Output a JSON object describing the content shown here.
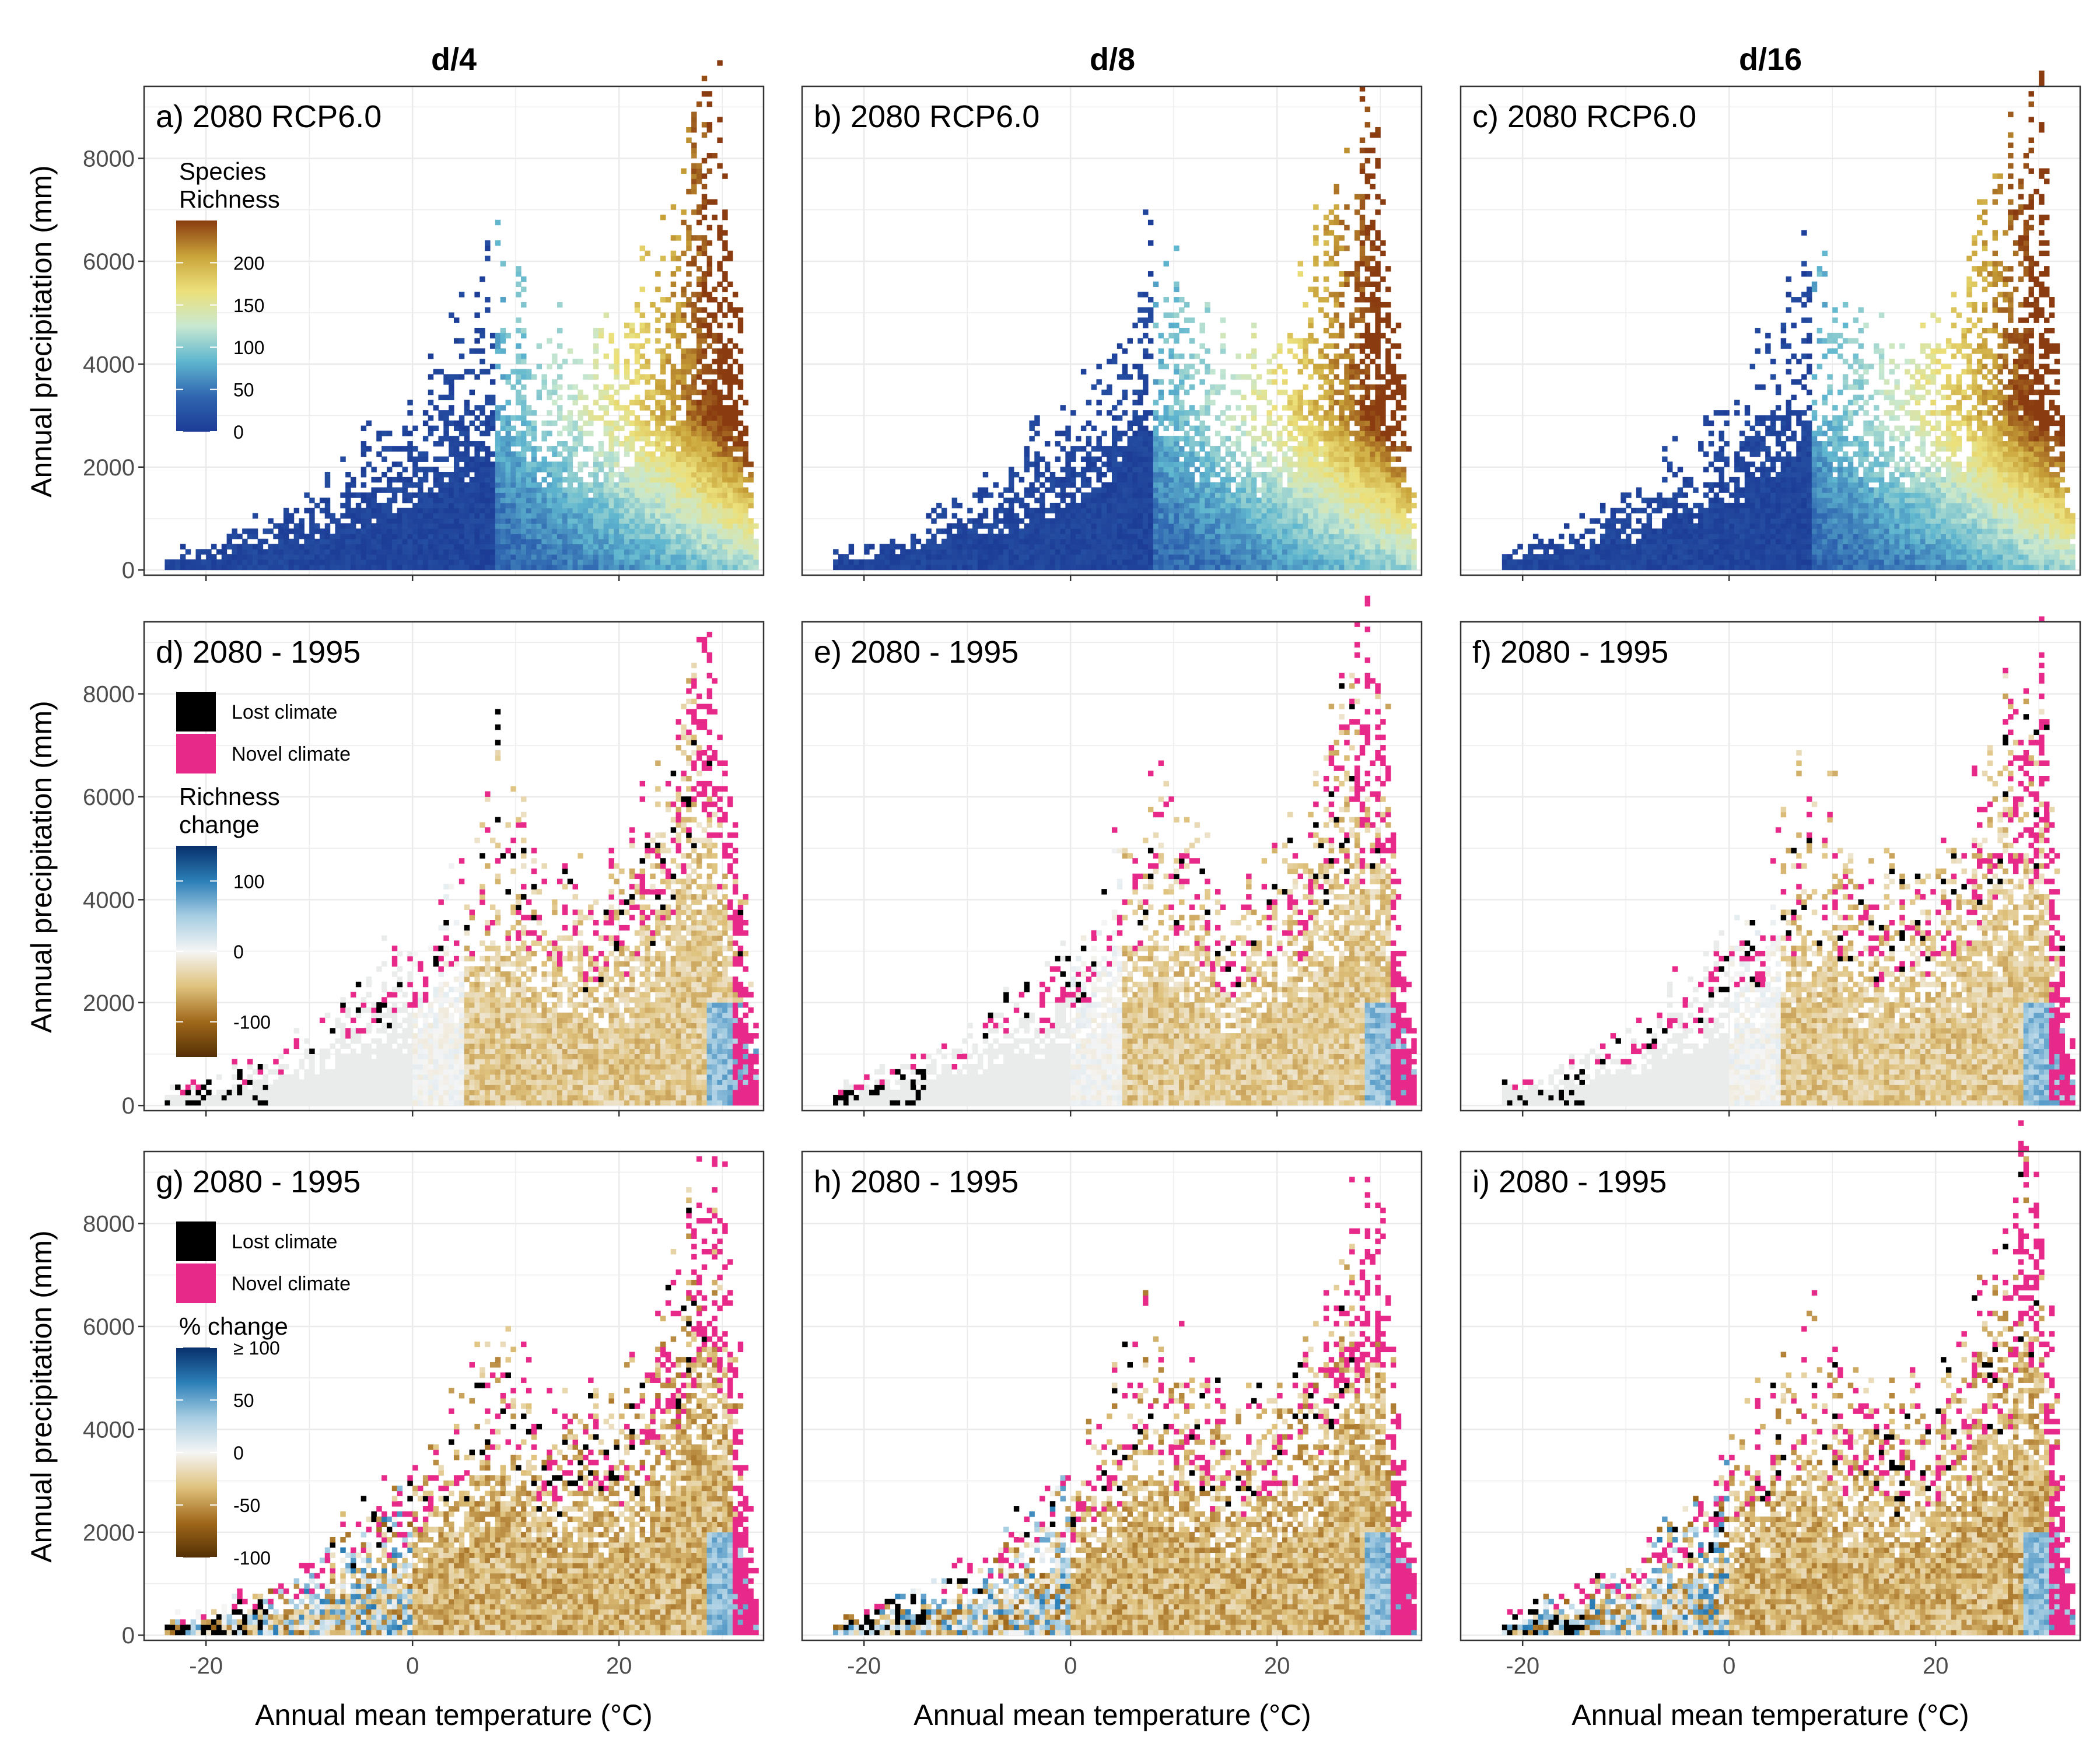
{
  "columns": [
    "d/4",
    "d/8",
    "d/16"
  ],
  "axes": {
    "xlabel": "Annual mean temperature (°C)",
    "ylabel": "Annual precipitation (mm)",
    "xlim": [
      -26,
      34
    ],
    "ylim": [
      -100,
      9400
    ],
    "xticks": [
      -20,
      0,
      20
    ],
    "xtick_labels": [
      "-20",
      "0",
      "20"
    ],
    "yticks": [
      0,
      2000,
      4000,
      6000,
      8000
    ],
    "ytick_labels": [
      "0",
      "2000",
      "4000",
      "6000",
      "8000"
    ]
  },
  "rows": [
    {
      "panel_titles": [
        "a) 2080 RCP6.0",
        "b) 2080 RCP6.0",
        "c) 2080 RCP6.0"
      ],
      "legend": {
        "title_lines": [
          "Species",
          "Richness"
        ],
        "ticks": [
          0,
          50,
          100,
          150,
          200
        ],
        "tick_labels": [
          "0",
          "50",
          "100",
          "150",
          "200"
        ],
        "colors": [
          "#1c3c96",
          "#2f66b0",
          "#5fb6cf",
          "#c8e8d0",
          "#ece07a",
          "#c9a33a",
          "#8a3c10"
        ],
        "range": [
          0,
          250
        ]
      }
    },
    {
      "panel_titles": [
        "d) 2080 - 1995",
        "e) 2080 - 1995",
        "f) 2080 - 1995"
      ],
      "legend": {
        "keys": [
          {
            "label": "Lost climate",
            "color": "#000000"
          },
          {
            "label": "Novel climate",
            "color": "#e7298a"
          }
        ],
        "title_lines": [
          "Richness",
          "change"
        ],
        "ticks": [
          100,
          0,
          -100
        ],
        "tick_labels": [
          "100",
          "0",
          "-100"
        ],
        "colors": [
          "#08306b",
          "#2c7fb8",
          "#a6cde2",
          "#f5f5f5",
          "#dfc27d",
          "#a0681a",
          "#543005"
        ],
        "range": [
          150,
          -150
        ]
      }
    },
    {
      "panel_titles": [
        "g) 2080 - 1995",
        "h) 2080 - 1995",
        "i) 2080 - 1995"
      ],
      "legend": {
        "keys": [
          {
            "label": "Lost climate",
            "color": "#000000"
          },
          {
            "label": "Novel climate",
            "color": "#e7298a"
          }
        ],
        "title_lines": [
          "% change"
        ],
        "ticks": [
          100,
          50,
          0,
          -50,
          -100
        ],
        "tick_labels": [
          "≥ 100",
          "50",
          "0",
          "-50",
          "-100"
        ],
        "colors": [
          "#08306b",
          "#2c7fb8",
          "#a6cde2",
          "#f5f5f5",
          "#dfc27d",
          "#a0681a",
          "#543005"
        ],
        "range": [
          100,
          -100
        ]
      }
    }
  ],
  "colors": {
    "lost_climate": "#000000",
    "novel_climate": "#e7298a",
    "grid": "#ebebeb",
    "panel_border": "#333333",
    "neutral_cell": "#e9ecea"
  },
  "chart_data": {
    "type": "heatmap",
    "layout": "3 rows x 3 columns of panels",
    "xlabel": "Annual mean temperature (°C)",
    "ylabel": "Annual precipitation (mm)",
    "x_range": [
      -26,
      34
    ],
    "y_range": [
      -100,
      9400
    ],
    "grid": true,
    "row_variables": [
      "Species Richness",
      "Richness change",
      "% change"
    ],
    "approx_data_envelope": {
      "description": "upper precipitation boundary of occupied climate space by temperature",
      "temperature_C": [
        -24,
        -20,
        -15,
        -10,
        -5,
        0,
        5,
        8,
        12,
        16,
        20,
        24,
        28,
        30,
        33
      ],
      "max_precip_mm": [
        350,
        500,
        1000,
        1500,
        2500,
        3500,
        5500,
        7000,
        5000,
        4500,
        5000,
        6500,
        9000,
        8800,
        1500
      ]
    },
    "approx_richness_pattern": {
      "description": "species richness rises with temperature and precipitation",
      "temperature_C": [
        -20,
        0,
        20,
        28,
        32
      ],
      "typical_richness": [
        5,
        20,
        80,
        180,
        220
      ]
    }
  }
}
